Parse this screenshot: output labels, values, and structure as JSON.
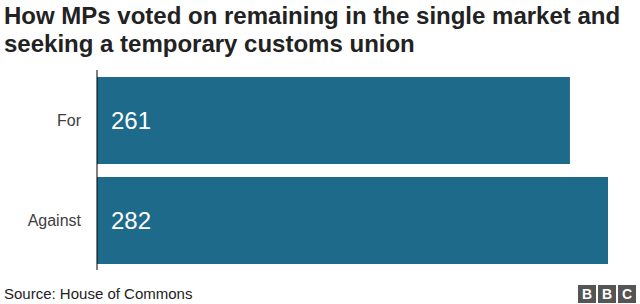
{
  "chart_data": {
    "type": "bar",
    "orientation": "horizontal",
    "title": "How MPs voted on remaining in the single market and seeking a temporary customs union",
    "categories": [
      "For",
      "Against"
    ],
    "values": [
      261,
      282
    ],
    "color": "#1d6a8b",
    "xlim": [
      0,
      282
    ],
    "data_labels": true,
    "tick_labels": "y",
    "grid": false,
    "source": "Source: House of Commons",
    "logo": "BBC"
  }
}
